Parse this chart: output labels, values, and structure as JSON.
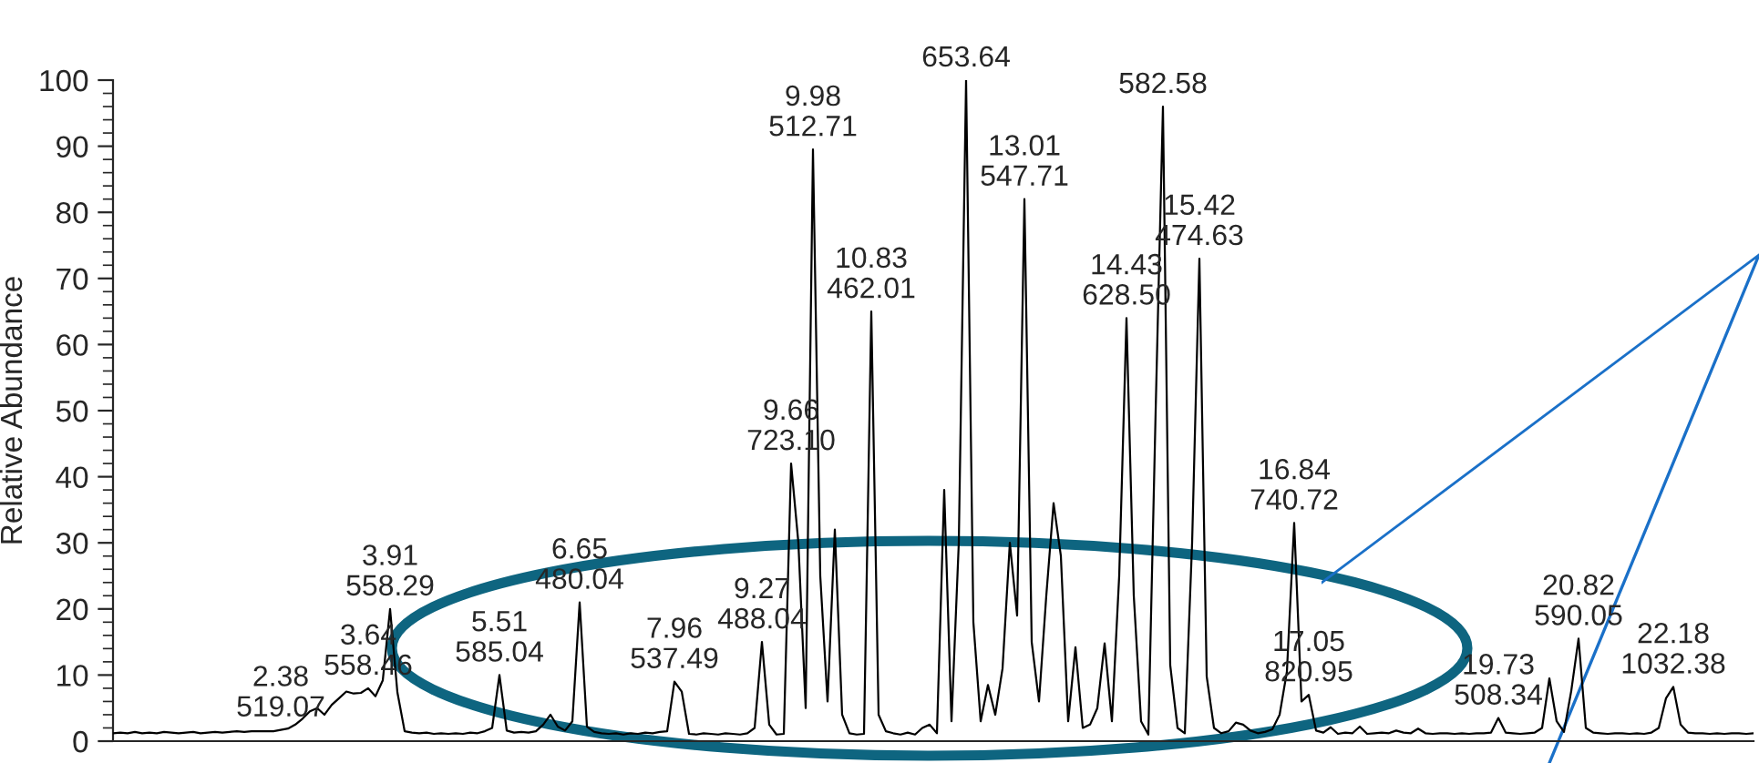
{
  "chart_data": {
    "type": "line",
    "ylabel": "Relative Abundance",
    "ylim": [
      0,
      100
    ],
    "yticks": [
      0,
      10,
      20,
      30,
      40,
      50,
      60,
      70,
      80,
      90,
      100
    ],
    "tick_labels": "y",
    "grid": false,
    "legend": false,
    "marker": "none",
    "line_style": "solid",
    "categories": [
      null,
      null,
      null,
      null,
      null,
      null,
      null,
      null,
      null,
      null,
      null,
      null,
      null,
      null,
      null,
      null,
      null,
      null,
      null,
      null,
      null,
      null,
      null,
      null,
      null,
      null,
      null,
      null,
      null,
      null,
      null,
      null,
      null,
      null,
      null,
      null,
      null,
      null,
      null,
      null,
      null,
      null,
      null,
      null,
      null,
      null,
      null,
      null,
      null,
      null,
      null,
      null,
      null,
      null,
      null,
      null,
      null,
      null,
      null,
      null,
      null,
      null,
      null,
      null,
      null,
      null,
      null,
      null,
      null,
      null,
      null,
      null,
      null,
      null,
      null,
      null,
      null,
      null,
      null,
      null,
      null,
      null,
      null,
      null,
      null,
      null,
      null,
      null,
      null,
      null,
      null,
      null,
      null,
      null,
      null,
      null,
      null,
      null,
      null,
      null,
      null,
      null,
      null,
      null,
      null,
      null,
      null,
      null,
      null,
      null,
      null,
      null,
      null,
      null,
      null,
      null,
      null,
      null,
      null,
      null,
      null,
      null,
      null,
      null,
      null,
      null,
      null,
      null,
      null,
      null,
      null,
      null,
      null,
      null,
      null,
      null,
      null,
      null,
      null,
      null,
      null,
      null,
      null,
      null,
      null,
      null,
      null,
      null,
      null,
      null,
      null,
      null,
      null,
      null,
      null,
      null,
      null,
      null,
      null,
      null,
      null,
      null,
      null,
      null,
      null,
      null,
      null,
      null,
      null,
      null,
      null,
      null,
      null,
      null,
      null,
      null,
      null,
      null,
      null,
      null,
      null,
      null,
      null,
      null,
      null,
      null,
      null,
      null,
      null,
      null,
      null,
      null,
      null,
      null,
      null,
      null,
      null,
      null,
      null,
      null,
      null,
      null,
      null,
      null,
      null,
      null,
      null,
      null,
      null,
      null,
      null,
      null,
      null,
      null,
      null,
      null,
      null,
      null,
      null,
      null,
      null,
      null,
      null,
      null,
      null,
      null
    ],
    "series": [
      {
        "color": "#000000",
        "values": [
          1.2,
          1.3,
          1.2,
          1.4,
          1.2,
          1.3,
          1.2,
          1.4,
          1.3,
          1.2,
          1.3,
          1.4,
          1.2,
          1.3,
          1.4,
          1.3,
          1.4,
          1.5,
          1.4,
          1.5,
          1.5,
          1.5,
          1.5,
          1.7,
          1.9,
          2.5,
          3.4,
          4.5,
          5,
          4,
          5.5,
          6.5,
          7.5,
          7.2,
          7.3,
          8,
          6.8,
          9.2,
          20,
          7.4,
          1.5,
          1.3,
          1.2,
          1.3,
          1.1,
          1.2,
          1.1,
          1.2,
          1.1,
          1.3,
          1.2,
          1.5,
          2,
          10,
          1.6,
          1.3,
          1.4,
          1.3,
          1.5,
          2.5,
          4,
          2.2,
          1.6,
          3.0,
          21,
          2.2,
          1.4,
          1.2,
          1.1,
          1.2,
          1.0,
          1.2,
          1.1,
          1.3,
          1.2,
          1.4,
          1.5,
          9,
          7.5,
          1.1,
          1.0,
          1.2,
          1.1,
          1.0,
          1.2,
          1.1,
          1.0,
          1.2,
          2,
          15,
          2.5,
          1.0,
          1.1,
          42,
          30,
          5,
          89.5,
          25,
          6,
          32,
          4,
          1.2,
          1.0,
          1.1,
          65,
          4,
          1.5,
          1.2,
          1.0,
          1.3,
          1.0,
          2,
          2.5,
          1.2,
          38,
          3,
          30,
          100,
          18,
          3,
          8.5,
          4,
          11,
          30,
          19,
          82,
          15,
          6,
          22,
          36,
          28,
          3,
          14.2,
          2,
          2.5,
          5,
          14.8,
          3,
          25,
          64,
          22,
          3,
          1.0,
          50,
          96,
          11.5,
          2,
          1.2,
          30,
          73,
          9.8,
          2,
          1.2,
          1.5,
          2.8,
          2.5,
          1.6,
          1.2,
          1.4,
          1.8,
          4,
          10.5,
          33,
          6,
          7,
          1.6,
          1.3,
          2.1,
          1.1,
          1.3,
          1.2,
          2.2,
          1.1,
          1.2,
          1.3,
          1.2,
          1.6,
          1.3,
          1.2,
          1.9,
          1.2,
          1.1,
          1.2,
          1.2,
          1.1,
          1.2,
          1.1,
          1.2,
          1.2,
          1.3,
          3.5,
          1.3,
          1.2,
          1.1,
          1.2,
          1.3,
          2,
          9.5,
          3,
          1.4,
          7.6,
          15.5,
          2,
          1.3,
          1.2,
          1.1,
          1.2,
          1.2,
          1.1,
          1.2,
          1.1,
          1.3,
          2,
          6.5,
          8.2,
          2.5,
          1.3,
          1.2,
          1.2,
          1.1,
          1.2,
          1.1,
          1.2,
          1.2,
          1.1,
          1.2
        ]
      }
    ],
    "annotations": [
      {
        "text": "2.38\n519.07",
        "y": 1.7
      },
      {
        "text": "3.64\n558.46",
        "y": 8
      },
      {
        "text": "3.91\n558.29",
        "y": 20
      },
      {
        "text": "5.51\n585.04",
        "y": 10
      },
      {
        "text": "6.65\n480.04",
        "y": 21
      },
      {
        "text": "7.96\n537.49",
        "y": 9
      },
      {
        "text": "9.27\n488.04",
        "y": 15
      },
      {
        "text": "9.66\n723.10",
        "y": 42
      },
      {
        "text": "9.98\n512.71",
        "y": 89.5
      },
      {
        "text": "10.83\n462.01",
        "y": 65
      },
      {
        "text": "653.64",
        "y": 100
      },
      {
        "text": "13.01\n547.71",
        "y": 82
      },
      {
        "text": "14.43\n628.50",
        "y": 64
      },
      {
        "text": "582.58",
        "y": 96
      },
      {
        "text": "15.42\n474.63",
        "y": 73
      },
      {
        "text": "16.84\n740.72",
        "y": 33
      },
      {
        "text": "17.05\n820.95",
        "y": 7
      },
      {
        "text": "19.73\n508.34",
        "y": 3.5
      },
      {
        "text": "20.82\n590.05",
        "y": 15.5
      },
      {
        "text": "22.18\n1032.38",
        "y": 8.2
      }
    ]
  }
}
